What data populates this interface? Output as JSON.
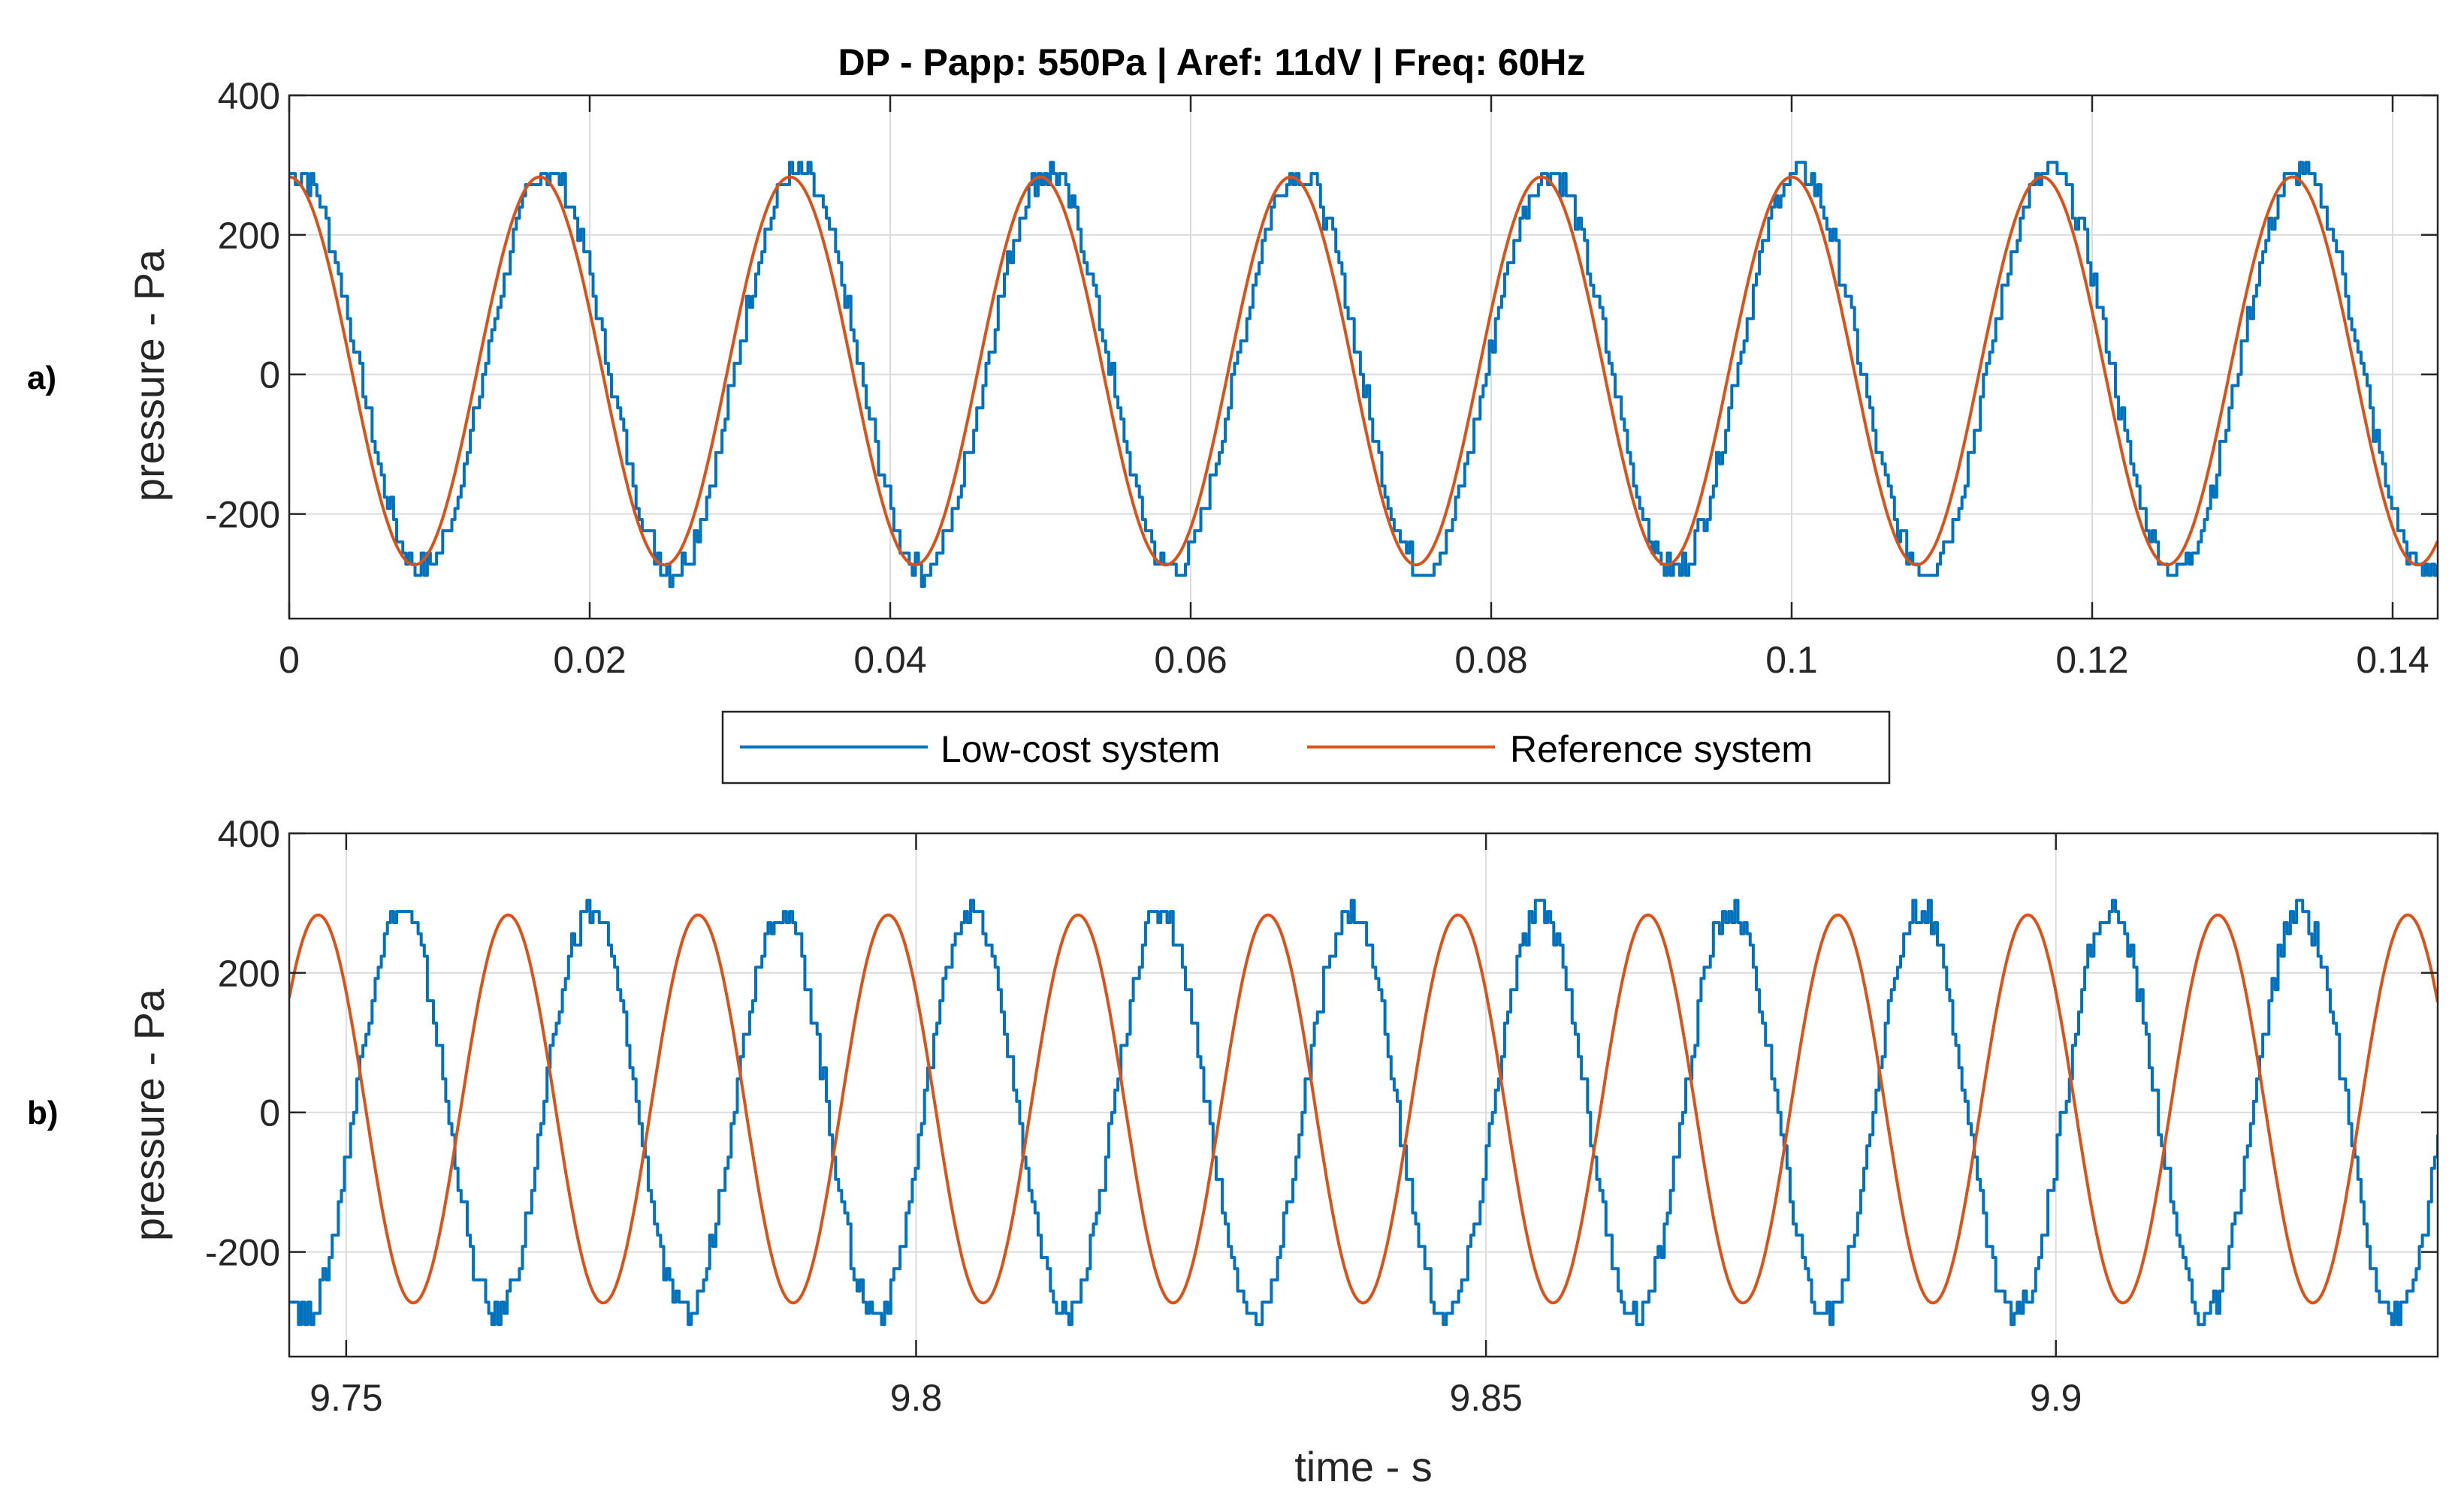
{
  "chart_data": {
    "title": "DP - Papp: 550Pa | Aref: 11dV | Freq: 60Hz",
    "type": "line",
    "legend": {
      "position": "between-panels",
      "entries": [
        {
          "name": "Low-cost system",
          "color": "#0072BD"
        },
        {
          "name": "Reference system",
          "color": "#D95319"
        }
      ]
    },
    "panels": [
      {
        "label": "a)",
        "ylabel": "pressure - Pa",
        "xlabel": "",
        "xlim": [
          0,
          0.143
        ],
        "ylim": [
          -350,
          400
        ],
        "xticks": [
          0,
          0.02,
          0.04,
          0.06,
          0.08,
          0.1,
          0.12,
          0.14
        ],
        "xtick_labels": [
          "0",
          "0.02",
          "0.04",
          "0.06",
          "0.08",
          "0.1",
          "0.12",
          "0.14"
        ],
        "yticks": [
          -200,
          0,
          200,
          400
        ],
        "ytick_labels": [
          "-200",
          "0",
          "200",
          "400"
        ],
        "grid": true,
        "series": [
          {
            "name": "Low-cost system",
            "kind": "stepped-sine",
            "frequency_hz": 60,
            "amplitude": 285,
            "offset": 5,
            "phase_deg": 80,
            "quant_step": 16
          },
          {
            "name": "Reference system",
            "kind": "sine",
            "frequency_hz": 60,
            "amplitude": 278,
            "offset": 5,
            "phase_deg": 90
          }
        ]
      },
      {
        "label": "b)",
        "ylabel": "pressure - Pa",
        "xlabel": "time - s",
        "xlim": [
          9.745,
          9.9335
        ],
        "ylim": [
          -350,
          400
        ],
        "xticks": [
          9.75,
          9.8,
          9.85,
          9.9
        ],
        "xtick_labels": [
          "9.75",
          "9.8",
          "9.85",
          "9.9"
        ],
        "yticks": [
          -200,
          0,
          200,
          400
        ],
        "ytick_labels": [
          "-200",
          "0",
          "200",
          "400"
        ],
        "grid": true,
        "series": [
          {
            "name": "Low-cost system",
            "kind": "stepped-sine",
            "frequency_hz": 60,
            "amplitude": 290,
            "offset": 0,
            "phase_deg": -120,
            "quant_step": 16
          },
          {
            "name": "Reference system",
            "kind": "sine",
            "frequency_hz": 60,
            "amplitude": 278,
            "offset": 5,
            "phase_deg": 35
          }
        ]
      }
    ]
  }
}
